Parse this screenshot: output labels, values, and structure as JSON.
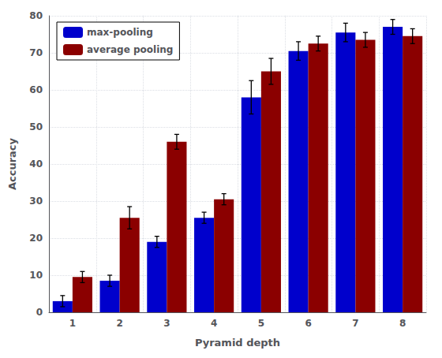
{
  "chart_data": {
    "type": "bar",
    "xlabel": "Pyramid depth",
    "ylabel": "Accuracy",
    "categories": [
      "1",
      "2",
      "3",
      "4",
      "5",
      "6",
      "7",
      "8"
    ],
    "series": [
      {
        "name": "max-pooling",
        "color": "#0000CC",
        "values": [
          3.0,
          8.5,
          19.0,
          25.5,
          58.0,
          70.5,
          75.5,
          77.0
        ],
        "errors": [
          1.5,
          1.5,
          1.5,
          1.5,
          4.5,
          2.5,
          2.5,
          2.0
        ]
      },
      {
        "name": "average pooling",
        "color": "#8B0000",
        "values": [
          9.5,
          25.5,
          46.0,
          30.5,
          65.0,
          72.5,
          73.5,
          74.5
        ],
        "errors": [
          1.5,
          3.0,
          2.0,
          1.5,
          3.5,
          2.0,
          2.0,
          2.0
        ]
      }
    ],
    "ylim": [
      0,
      80
    ],
    "yticks": [
      0,
      10,
      20,
      30,
      40,
      50,
      60,
      70,
      80
    ],
    "grid": true,
    "legend": "upper left"
  }
}
